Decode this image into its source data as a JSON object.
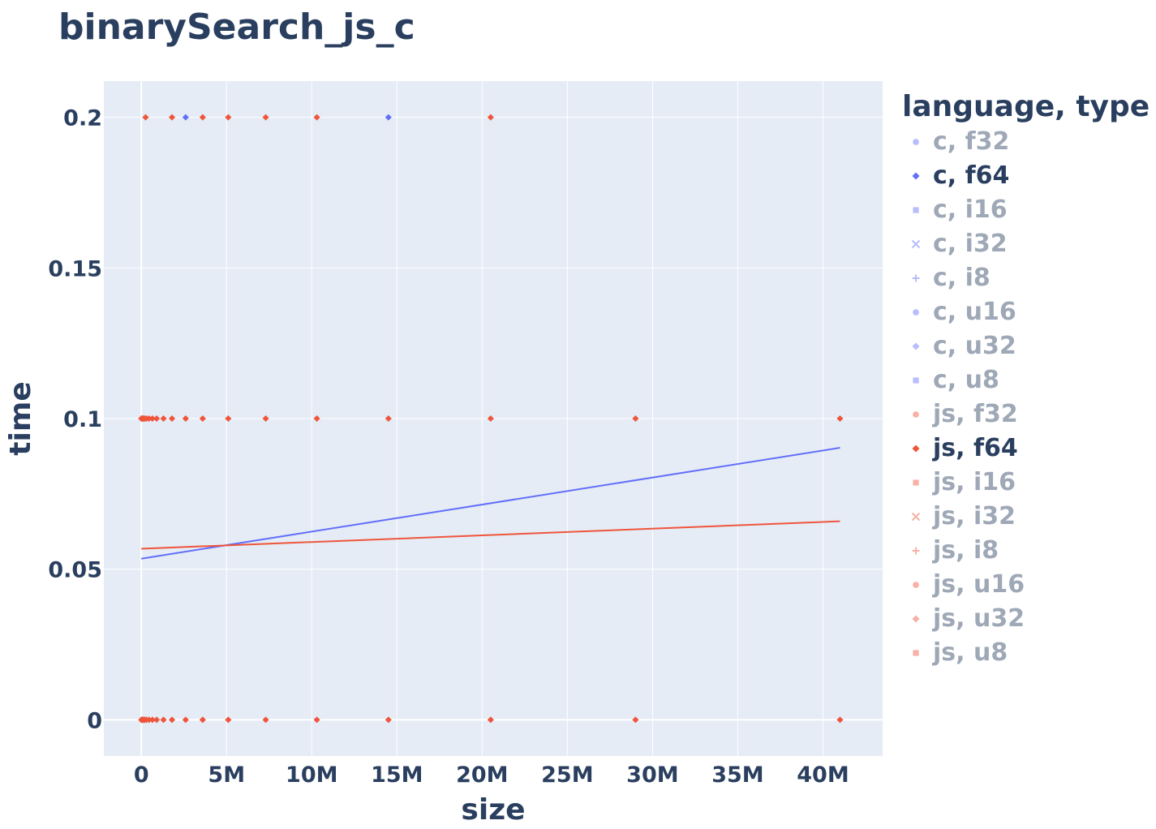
{
  "chart_data": {
    "type": "scatter",
    "title": "binarySearch_js_c",
    "xlabel": "size",
    "ylabel": "time",
    "xlim": [
      -2200000,
      43500000
    ],
    "ylim": [
      -0.012,
      0.212
    ],
    "x_ticks": [
      {
        "value": 0,
        "label": "0"
      },
      {
        "value": 5000000,
        "label": "5M"
      },
      {
        "value": 10000000,
        "label": "10M"
      },
      {
        "value": 15000000,
        "label": "15M"
      },
      {
        "value": 20000000,
        "label": "20M"
      },
      {
        "value": 25000000,
        "label": "25M"
      },
      {
        "value": 30000000,
        "label": "30M"
      },
      {
        "value": 35000000,
        "label": "35M"
      },
      {
        "value": 40000000,
        "label": "40M"
      }
    ],
    "y_ticks": [
      {
        "value": 0,
        "label": "0"
      },
      {
        "value": 0.05,
        "label": "0.05"
      },
      {
        "value": 0.1,
        "label": "0.1"
      },
      {
        "value": 0.15,
        "label": "0.15"
      },
      {
        "value": 0.2,
        "label": "0.2"
      }
    ],
    "grid": true,
    "legend_title": "language, type",
    "legend_placement": "right",
    "series": [
      {
        "name": "c, f32",
        "color": "#636efa",
        "symbol": "circle",
        "visible": false
      },
      {
        "name": "c, f64",
        "color": "#636efa",
        "symbol": "diamond",
        "visible": true,
        "points": [
          [
            2600000,
            0.2
          ],
          [
            14500000,
            0.2
          ]
        ],
        "trendline": [
          [
            0,
            0.0535
          ],
          [
            41000000,
            0.0903
          ]
        ]
      },
      {
        "name": "c, i16",
        "color": "#636efa",
        "symbol": "square",
        "visible": false
      },
      {
        "name": "c, i32",
        "color": "#636efa",
        "symbol": "x",
        "visible": false
      },
      {
        "name": "c, i8",
        "color": "#636efa",
        "symbol": "cross",
        "visible": false
      },
      {
        "name": "c, u16",
        "color": "#636efa",
        "symbol": "circle",
        "visible": false
      },
      {
        "name": "c, u32",
        "color": "#636efa",
        "symbol": "diamond",
        "visible": false
      },
      {
        "name": "c, u8",
        "color": "#636efa",
        "symbol": "square",
        "visible": false
      },
      {
        "name": "js, f32",
        "color": "#ef553b",
        "symbol": "circle",
        "visible": false
      },
      {
        "name": "js, f64",
        "color": "#ef553b",
        "symbol": "diamond",
        "visible": true,
        "points": [
          [
            250000,
            0.2
          ],
          [
            1800000,
            0.2
          ],
          [
            3600000,
            0.2
          ],
          [
            5100000,
            0.2
          ],
          [
            7300000,
            0.2
          ],
          [
            10300000,
            0.2
          ],
          [
            20500000,
            0.2
          ],
          [
            0,
            0.1
          ],
          [
            30000,
            0.1
          ],
          [
            60000,
            0.1
          ],
          [
            100000,
            0.1
          ],
          [
            150000,
            0.1
          ],
          [
            200000,
            0.1
          ],
          [
            300000,
            0.1
          ],
          [
            450000,
            0.1
          ],
          [
            650000,
            0.1
          ],
          [
            900000,
            0.1
          ],
          [
            1300000,
            0.1
          ],
          [
            1800000,
            0.1
          ],
          [
            2600000,
            0.1
          ],
          [
            3600000,
            0.1
          ],
          [
            5100000,
            0.1
          ],
          [
            7300000,
            0.1
          ],
          [
            10300000,
            0.1
          ],
          [
            14500000,
            0.1
          ],
          [
            20500000,
            0.1
          ],
          [
            29000000,
            0.1
          ],
          [
            41000000,
            0.1
          ],
          [
            0,
            0
          ],
          [
            30000,
            0
          ],
          [
            60000,
            0
          ],
          [
            100000,
            0
          ],
          [
            150000,
            0
          ],
          [
            200000,
            0
          ],
          [
            300000,
            0
          ],
          [
            450000,
            0
          ],
          [
            650000,
            0
          ],
          [
            900000,
            0
          ],
          [
            1300000,
            0
          ],
          [
            1800000,
            0
          ],
          [
            2600000,
            0
          ],
          [
            3600000,
            0
          ],
          [
            5100000,
            0
          ],
          [
            7300000,
            0
          ],
          [
            10300000,
            0
          ],
          [
            14500000,
            0
          ],
          [
            20500000,
            0
          ],
          [
            29000000,
            0
          ],
          [
            41000000,
            0
          ]
        ],
        "trendline": [
          [
            0,
            0.0568
          ],
          [
            41000000,
            0.0659
          ]
        ]
      },
      {
        "name": "js, i16",
        "color": "#ef553b",
        "symbol": "square",
        "visible": false
      },
      {
        "name": "js, i32",
        "color": "#ef553b",
        "symbol": "x",
        "visible": false
      },
      {
        "name": "js, i8",
        "color": "#ef553b",
        "symbol": "cross",
        "visible": false
      },
      {
        "name": "js, u16",
        "color": "#ef553b",
        "symbol": "circle",
        "visible": false
      },
      {
        "name": "js, u32",
        "color": "#ef553b",
        "symbol": "diamond",
        "visible": false
      },
      {
        "name": "js, u8",
        "color": "#ef553b",
        "symbol": "square",
        "visible": false
      }
    ]
  }
}
